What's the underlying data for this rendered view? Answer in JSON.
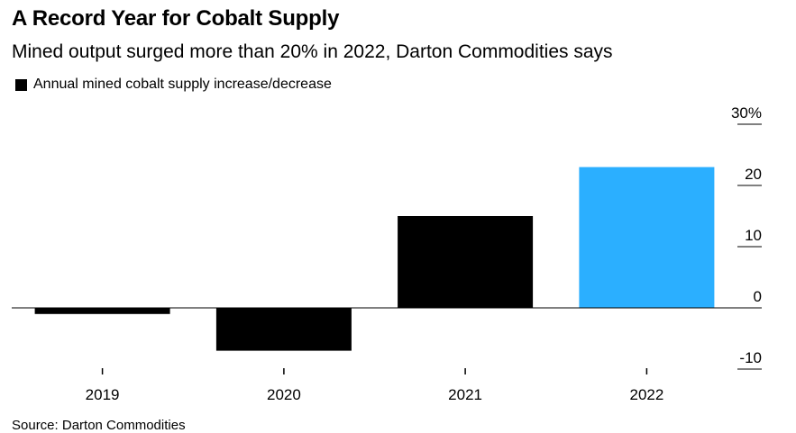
{
  "chart_data": {
    "type": "bar",
    "title": "A Record Year for Cobalt Supply",
    "subtitle": "Mined output surged more than 20% in 2022, Darton Commodities says",
    "legend": [
      {
        "name": "Annual mined cobalt supply increase/decrease",
        "color": "#000000"
      }
    ],
    "legend_placement": "top-left",
    "categories": [
      "2019",
      "2020",
      "2021",
      "2022"
    ],
    "series": [
      {
        "name": "Annual mined cobalt supply increase/decrease",
        "values": [
          -1,
          -7,
          15,
          23
        ],
        "colors": [
          "#000000",
          "#000000",
          "#000000",
          "#2bafff"
        ]
      }
    ],
    "ylim": [
      -10,
      30
    ],
    "yticks": [
      {
        "value": 30,
        "label": "30%"
      },
      {
        "value": 20,
        "label": "20"
      },
      {
        "value": 10,
        "label": "10"
      },
      {
        "value": 0,
        "label": "0"
      },
      {
        "value": -10,
        "label": "-10"
      }
    ],
    "yaxis_position": "right",
    "grid": false,
    "xlabel": "",
    "ylabel": "",
    "source": "Source: Darton Commodities"
  }
}
